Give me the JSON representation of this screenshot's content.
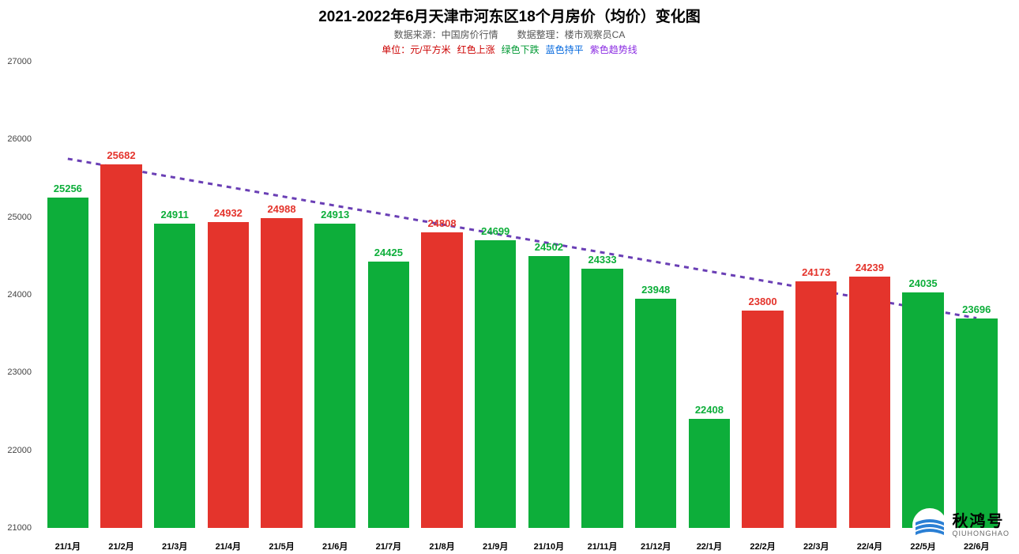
{
  "chart": {
    "type": "bar",
    "title": "2021-2022年6月天津市河东区18个月房价（均价）变化图",
    "title_fontsize": 19,
    "subtitle": "数据来源：中国房价行情　　数据整理：楼市观察员CA",
    "subtitle_fontsize": 12,
    "unit_line_fontsize": 12,
    "unit_parts": [
      {
        "text": "单位：元/平方米",
        "color": "#cc0000"
      },
      {
        "text": "红色上涨",
        "color": "#cc0000"
      },
      {
        "text": "绿色下跌",
        "color": "#009933"
      },
      {
        "text": "蓝色持平",
        "color": "#0066dd"
      },
      {
        "text": "紫色趋势线",
        "color": "#8a2be2"
      }
    ],
    "background_color": "#ffffff",
    "ylim": [
      21000,
      27000
    ],
    "yticks": [
      21000,
      22000,
      23000,
      24000,
      25000,
      26000,
      27000
    ],
    "ytick_fontsize": 11,
    "xtick_fontsize": 11,
    "value_label_fontsize": 13,
    "bar_width_ratio": 0.88,
    "categories": [
      "21/1月",
      "21/2月",
      "21/3月",
      "21/4月",
      "21/5月",
      "21/6月",
      "21/7月",
      "21/8月",
      "21/9月",
      "21/10月",
      "21/11月",
      "21/12月",
      "22/1月",
      "22/2月",
      "22/3月",
      "22/4月",
      "22/5月",
      "22/6月"
    ],
    "values": [
      25256,
      25682,
      24911,
      24932,
      24988,
      24913,
      24425,
      24808,
      24699,
      24502,
      24333,
      23948,
      22408,
      23800,
      24173,
      24239,
      24035,
      23696
    ],
    "colors": {
      "up": "#e4342c",
      "down": "#0dae3a",
      "flat": "#0066dd"
    },
    "bar_directions": [
      "down",
      "up",
      "down",
      "up",
      "up",
      "down",
      "down",
      "up",
      "down",
      "down",
      "down",
      "down",
      "down",
      "up",
      "up",
      "up",
      "down",
      "down"
    ],
    "trendline": {
      "color": "#6a3fb5",
      "dash": "6,6",
      "width": 3,
      "start_value": 25750,
      "end_value": 23700
    }
  },
  "watermark": {
    "cn": "秋鸿号",
    "en": "QIUHONGHAO",
    "logo_color": "#2a7fd4"
  }
}
